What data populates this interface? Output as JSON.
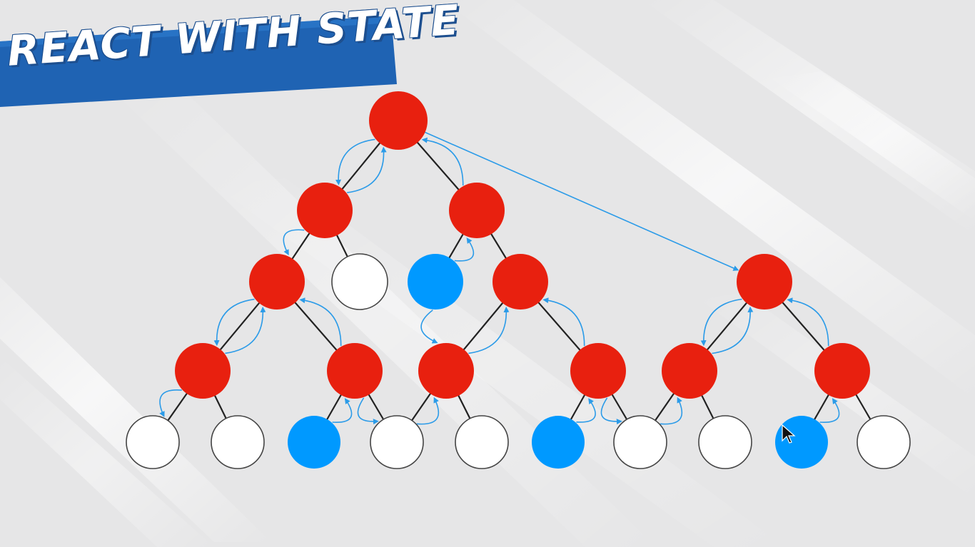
{
  "title": "REACT WITH STATE",
  "colors": {
    "stateful": "#e8200f",
    "state_source": "#0099ff",
    "stateless_fill": "#ffffff",
    "stroke": "#222222",
    "arrow": "#2b9be8",
    "banner": "#1f63b3"
  },
  "diagram": {
    "nodes": [
      {
        "id": "n0",
        "kind": "stateful"
      },
      {
        "id": "n1",
        "kind": "stateful"
      },
      {
        "id": "n2",
        "kind": "stateful"
      },
      {
        "id": "n3",
        "kind": "stateful"
      },
      {
        "id": "n4",
        "kind": "stateless"
      },
      {
        "id": "n5",
        "kind": "state_source"
      },
      {
        "id": "n6",
        "kind": "stateful"
      },
      {
        "id": "n7",
        "kind": "stateful"
      },
      {
        "id": "n8",
        "kind": "stateful"
      },
      {
        "id": "n9",
        "kind": "stateful"
      },
      {
        "id": "n10",
        "kind": "stateful"
      },
      {
        "id": "n11",
        "kind": "stateful"
      },
      {
        "id": "n12",
        "kind": "stateful"
      },
      {
        "id": "n13",
        "kind": "stateful"
      },
      {
        "id": "n14",
        "kind": "stateless"
      },
      {
        "id": "n15",
        "kind": "stateless"
      },
      {
        "id": "n16",
        "kind": "state_source"
      },
      {
        "id": "n17",
        "kind": "stateless"
      },
      {
        "id": "n18",
        "kind": "stateless"
      },
      {
        "id": "n19",
        "kind": "state_source"
      },
      {
        "id": "n20",
        "kind": "stateless"
      },
      {
        "id": "n21",
        "kind": "stateless"
      },
      {
        "id": "n22",
        "kind": "state_source"
      },
      {
        "id": "n23",
        "kind": "stateless"
      }
    ],
    "edges": [
      [
        "n0",
        "n1"
      ],
      [
        "n0",
        "n2"
      ],
      [
        "n1",
        "n3"
      ],
      [
        "n1",
        "n4"
      ],
      [
        "n2",
        "n5"
      ],
      [
        "n2",
        "n6"
      ],
      [
        "n3",
        "n8"
      ],
      [
        "n3",
        "n9"
      ],
      [
        "n6",
        "n10"
      ],
      [
        "n6",
        "n11"
      ],
      [
        "n7",
        "n12"
      ],
      [
        "n7",
        "n13"
      ],
      [
        "n8",
        "n14"
      ],
      [
        "n8",
        "n15"
      ],
      [
        "n9",
        "n16"
      ],
      [
        "n9",
        "n17"
      ],
      [
        "n10",
        "n17"
      ],
      [
        "n10",
        "n18"
      ],
      [
        "n11",
        "n19"
      ],
      [
        "n11",
        "n20"
      ],
      [
        "n12",
        "n20"
      ],
      [
        "n12",
        "n21"
      ],
      [
        "n13",
        "n22"
      ],
      [
        "n13",
        "n23"
      ]
    ],
    "arrows": [
      [
        "n0",
        "n1"
      ],
      [
        "n1",
        "n0"
      ],
      [
        "n2",
        "n0"
      ],
      [
        "n0",
        "n7"
      ],
      [
        "n1",
        "n3"
      ],
      [
        "n5",
        "n2"
      ],
      [
        "n9",
        "n3"
      ],
      [
        "n3",
        "n8"
      ],
      [
        "n8",
        "n3"
      ],
      [
        "n8",
        "n14"
      ],
      [
        "n16",
        "n9"
      ],
      [
        "n9",
        "n17"
      ],
      [
        "n5",
        "n10"
      ],
      [
        "n10",
        "n6"
      ],
      [
        "n11",
        "n6"
      ],
      [
        "n17",
        "n10"
      ],
      [
        "n19",
        "n11"
      ],
      [
        "n11",
        "n20"
      ],
      [
        "n20",
        "n12"
      ],
      [
        "n7",
        "n12"
      ],
      [
        "n12",
        "n7"
      ],
      [
        "n13",
        "n7"
      ],
      [
        "n22",
        "n13"
      ]
    ]
  }
}
